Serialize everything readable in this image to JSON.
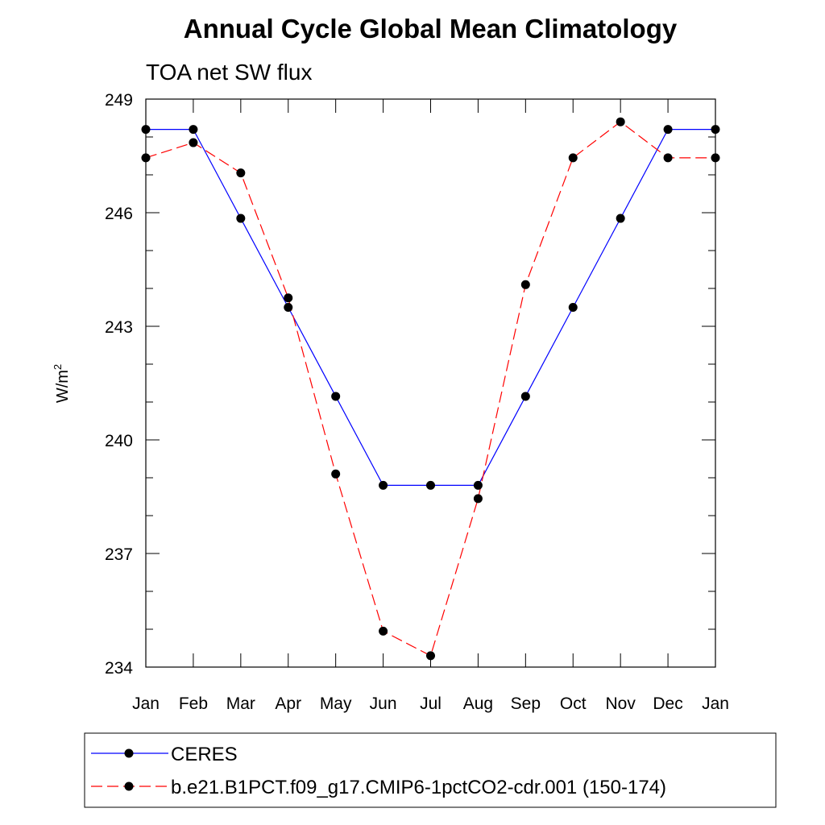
{
  "chart_data": {
    "type": "line",
    "title": "Annual Cycle Global Mean Climatology",
    "subtitle": "TOA net SW flux",
    "ylabel_base": "W/m",
    "ylabel_sup": "2",
    "xlabel": "",
    "categories": [
      "Jan",
      "Feb",
      "Mar",
      "Apr",
      "May",
      "Jun",
      "Jul",
      "Aug",
      "Sep",
      "Oct",
      "Nov",
      "Dec",
      "Jan"
    ],
    "ylim": [
      234,
      249
    ],
    "yticks": [
      "234",
      "237",
      "240",
      "243",
      "246",
      "249"
    ],
    "grid": false,
    "series": [
      {
        "name": "CERES",
        "color": "#0000ff",
        "dash": "solid",
        "values": [
          248.2,
          248.2,
          245.85,
          243.5,
          241.15,
          238.8,
          238.8,
          238.8,
          241.15,
          243.5,
          245.85,
          248.2,
          248.2
        ]
      },
      {
        "name": "b.e21.B1PCT.f09_g17.CMIP6-1pctCO2-cdr.001 (150-174)",
        "color": "#ff0000",
        "dash": "dashed",
        "values": [
          247.45,
          247.85,
          247.05,
          243.75,
          239.1,
          234.95,
          234.3,
          238.45,
          244.1,
          247.45,
          248.4,
          247.45,
          247.45
        ]
      }
    ],
    "legend_position": "bottom"
  }
}
